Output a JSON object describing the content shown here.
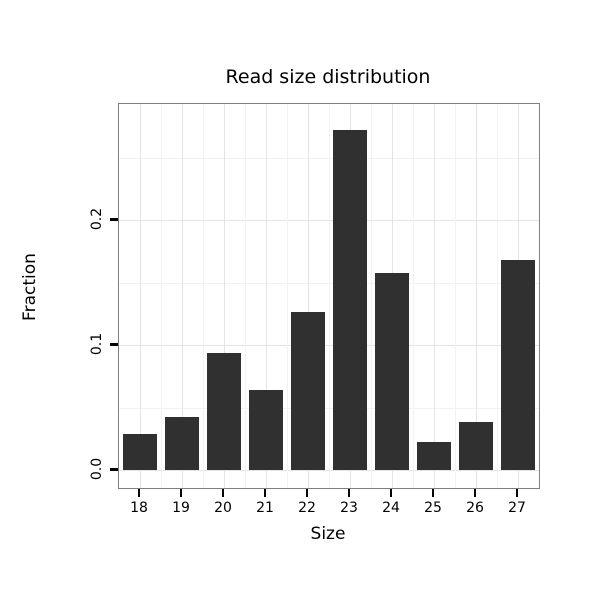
{
  "chart_data": {
    "type": "bar",
    "title": "Read size distribution",
    "xlabel": "Size",
    "ylabel": "Fraction",
    "categories": [
      "18",
      "19",
      "20",
      "21",
      "22",
      "23",
      "24",
      "25",
      "26",
      "27"
    ],
    "values": [
      0.029,
      0.043,
      0.094,
      0.064,
      0.127,
      0.272,
      0.158,
      0.023,
      0.039,
      0.168
    ],
    "ylim": [
      0,
      0.272
    ],
    "y_domain": [
      -0.014,
      0.293
    ],
    "yticks": [
      0,
      0.1,
      0.2
    ],
    "ytick_labels": [
      "0.0",
      "0.1",
      "0.2"
    ],
    "minor_gridlines": [
      0.05,
      0.15,
      0.25
    ],
    "grid": true,
    "legend": "none",
    "colors": {
      "bar": "#303030",
      "panel_border": "#7f7f7f",
      "grid_major": "#e4e4e4",
      "grid_minor": "#f2f2f2",
      "axis_text": "#000000",
      "background": "#ffffff"
    }
  }
}
